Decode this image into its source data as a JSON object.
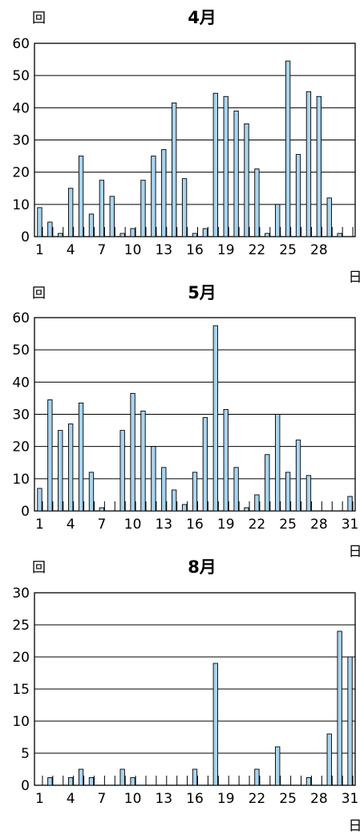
{
  "chart_data": [
    {
      "type": "bar",
      "title": "4月",
      "ylabel": "回",
      "xlabel": "日",
      "ylim": [
        0,
        60
      ],
      "y_ticks": [
        0,
        10,
        20,
        30,
        40,
        50,
        60
      ],
      "x_tick_labels": [
        "1",
        "4",
        "7",
        "10",
        "13",
        "16",
        "19",
        "22",
        "25",
        "28"
      ],
      "grid": "horizontal",
      "bar_color": "#a8d4ee",
      "days": [
        1,
        2,
        3,
        4,
        5,
        6,
        7,
        8,
        9,
        10,
        11,
        12,
        13,
        14,
        15,
        16,
        17,
        18,
        19,
        20,
        21,
        22,
        23,
        24,
        25,
        26,
        27,
        28,
        29,
        30
      ],
      "values": [
        9,
        4.5,
        1,
        15,
        25,
        7,
        17.5,
        12.5,
        1,
        2.5,
        17.5,
        25,
        27,
        41.5,
        18,
        1,
        2.5,
        44.5,
        43.5,
        39,
        35,
        21,
        1,
        10,
        54.5,
        25.5,
        45,
        43.5,
        12,
        1
      ]
    },
    {
      "type": "bar",
      "title": "5月",
      "ylabel": "回",
      "xlabel": "日",
      "ylim": [
        0,
        60
      ],
      "y_ticks": [
        0,
        10,
        20,
        30,
        40,
        50,
        60
      ],
      "x_tick_labels": [
        "1",
        "4",
        "7",
        "10",
        "13",
        "16",
        "19",
        "22",
        "25",
        "28",
        "31"
      ],
      "grid": "horizontal",
      "bar_color": "#a8d4ee",
      "days": [
        1,
        2,
        3,
        4,
        5,
        6,
        7,
        8,
        9,
        10,
        11,
        12,
        13,
        14,
        15,
        16,
        17,
        18,
        19,
        20,
        21,
        22,
        23,
        24,
        25,
        26,
        27,
        28,
        29,
        30,
        31
      ],
      "values": [
        7,
        34.5,
        25,
        27,
        33.5,
        12,
        1,
        0,
        25,
        36.5,
        31,
        20,
        13.5,
        6.5,
        2,
        12,
        29,
        57.5,
        31.5,
        13.5,
        1,
        5,
        17.5,
        30,
        12,
        22,
        11,
        0,
        0,
        0,
        4.5
      ]
    },
    {
      "type": "bar",
      "title": "8月",
      "ylabel": "回",
      "xlabel": "日",
      "ylim": [
        0,
        30
      ],
      "y_ticks": [
        0,
        5,
        10,
        15,
        20,
        25,
        30
      ],
      "x_tick_labels": [
        "1",
        "4",
        "7",
        "10",
        "13",
        "16",
        "19",
        "22",
        "25",
        "28",
        "31"
      ],
      "grid": "horizontal",
      "bar_color": "#a8d4ee",
      "days": [
        1,
        2,
        3,
        4,
        5,
        6,
        7,
        8,
        9,
        10,
        11,
        12,
        13,
        14,
        15,
        16,
        17,
        18,
        19,
        20,
        21,
        22,
        23,
        24,
        25,
        26,
        27,
        28,
        29,
        30,
        31
      ],
      "values": [
        0,
        1.2,
        0,
        1.2,
        2.5,
        1.2,
        0,
        0,
        2.5,
        1.2,
        0,
        0,
        0,
        0,
        0,
        2.5,
        0,
        19,
        0,
        0,
        0,
        2.5,
        0,
        6,
        0,
        0,
        1.2,
        0,
        8,
        24,
        20
      ]
    }
  ]
}
